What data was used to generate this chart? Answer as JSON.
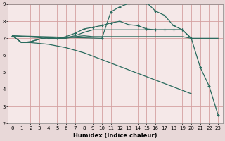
{
  "xlabel": "Humidex (Indice chaleur)",
  "bg_color": "#e8d8d8",
  "plot_bg_color": "#f5e8e8",
  "grid_color": "#d4a0a0",
  "line_color": "#2a6b5e",
  "xlim": [
    -0.5,
    23.5
  ],
  "ylim": [
    2,
    9
  ],
  "yticks": [
    2,
    3,
    4,
    5,
    6,
    7,
    8,
    9
  ],
  "xticks": [
    0,
    1,
    2,
    3,
    4,
    5,
    6,
    7,
    8,
    9,
    10,
    11,
    12,
    13,
    14,
    15,
    16,
    17,
    18,
    19,
    20,
    21,
    22,
    23
  ],
  "series": [
    {
      "x": [
        0,
        1,
        2,
        3,
        4,
        5,
        6,
        7,
        8,
        9,
        10,
        11,
        12,
        13,
        14,
        15,
        16,
        17,
        18,
        19,
        20,
        21,
        22,
        23
      ],
      "y": [
        7.15,
        6.75,
        6.8,
        6.95,
        7.05,
        7.0,
        7.0,
        7.1,
        7.15,
        7.1,
        7.1,
        7.1,
        7.1,
        7.1,
        7.1,
        7.1,
        7.1,
        7.1,
        7.1,
        7.1,
        7.0,
        7.0,
        7.0,
        7.0
      ],
      "marker": false,
      "lw": 0.9
    },
    {
      "x": [
        0,
        1,
        2,
        3,
        4,
        5,
        6,
        7,
        8,
        9,
        10,
        11,
        12,
        13,
        14,
        15,
        16,
        17,
        18,
        19,
        20
      ],
      "y": [
        7.15,
        6.75,
        6.8,
        6.95,
        7.05,
        7.0,
        7.05,
        7.15,
        7.35,
        7.5,
        7.5,
        7.5,
        7.5,
        7.5,
        7.5,
        7.5,
        7.5,
        7.5,
        7.5,
        7.5,
        7.0
      ],
      "marker": false,
      "lw": 0.9
    },
    {
      "x": [
        0,
        4,
        5,
        6,
        7,
        8,
        9,
        10,
        11,
        12,
        13,
        14,
        15,
        16,
        17,
        18,
        19
      ],
      "y": [
        7.15,
        7.0,
        7.0,
        7.1,
        7.3,
        7.55,
        7.65,
        7.75,
        7.9,
        8.0,
        7.8,
        7.75,
        7.55,
        7.5,
        7.5,
        7.5,
        7.5
      ],
      "marker": true,
      "lw": 0.9
    },
    {
      "x": [
        0,
        10,
        11,
        12,
        13,
        14,
        15,
        16,
        17,
        18,
        19,
        20,
        21,
        22,
        23
      ],
      "y": [
        7.15,
        7.0,
        8.55,
        8.85,
        9.05,
        9.3,
        9.1,
        8.6,
        8.35,
        7.75,
        7.5,
        7.0,
        5.3,
        4.2,
        2.5
      ],
      "marker": true,
      "lw": 0.9
    },
    {
      "x": [
        0,
        1,
        2,
        3,
        4,
        5,
        6,
        7,
        8,
        9,
        10,
        11,
        12,
        13,
        14,
        15,
        16,
        17,
        18,
        19,
        20
      ],
      "y": [
        7.15,
        6.75,
        6.75,
        6.7,
        6.65,
        6.55,
        6.45,
        6.3,
        6.15,
        5.95,
        5.75,
        5.55,
        5.35,
        5.15,
        4.95,
        4.75,
        4.55,
        4.35,
        4.15,
        3.95,
        3.75
      ],
      "marker": false,
      "lw": 0.9
    }
  ]
}
